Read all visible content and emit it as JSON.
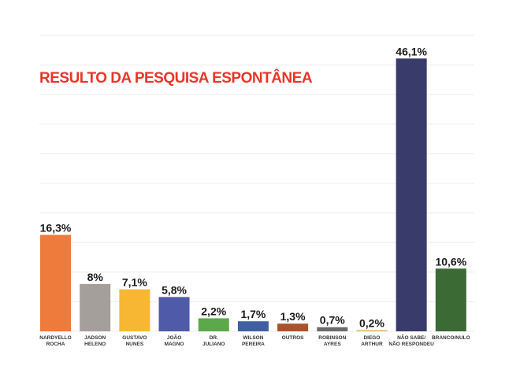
{
  "chart_data": {
    "type": "bar",
    "title": "RESULTO DA PESQUISA ESPONTÂNEA",
    "categories": [
      [
        "NARDYELLO",
        "ROCHA"
      ],
      [
        "JADSON",
        "HELENO"
      ],
      [
        "GUSTAVO",
        "NUNES"
      ],
      [
        "JOÃO",
        "MAGNO"
      ],
      [
        "DR.",
        "JULIANO"
      ],
      [
        "WILSON",
        "PEREIRA"
      ],
      [
        "OUTROS"
      ],
      [
        "ROBINSON",
        "AYRES"
      ],
      [
        "DIEGO",
        "ARTHUR"
      ],
      [
        "NÃO SABE/",
        "NÃO RESPONDEU"
      ],
      [
        "BRANCO/NULO"
      ]
    ],
    "values": [
      16.3,
      8,
      7.1,
      5.8,
      2.2,
      1.7,
      1.3,
      0.7,
      0.2,
      46.1,
      10.6
    ],
    "value_labels": [
      "16,3%",
      "8%",
      "7,1%",
      "5,8%",
      "2,2%",
      "1,7%",
      "1,3%",
      "0,7%",
      "0,2%",
      "46,1%",
      "10,6%"
    ],
    "colors": [
      "#ee7a3b",
      "#a59f9b",
      "#f7b733",
      "#4f5aa8",
      "#5ca94a",
      "#3f5fa1",
      "#a9532c",
      "#6c6c6c",
      "#dcb26a",
      "#393c6b",
      "#3c6a35"
    ],
    "ylim": [
      0,
      50
    ],
    "grid": true,
    "legend": "none"
  }
}
